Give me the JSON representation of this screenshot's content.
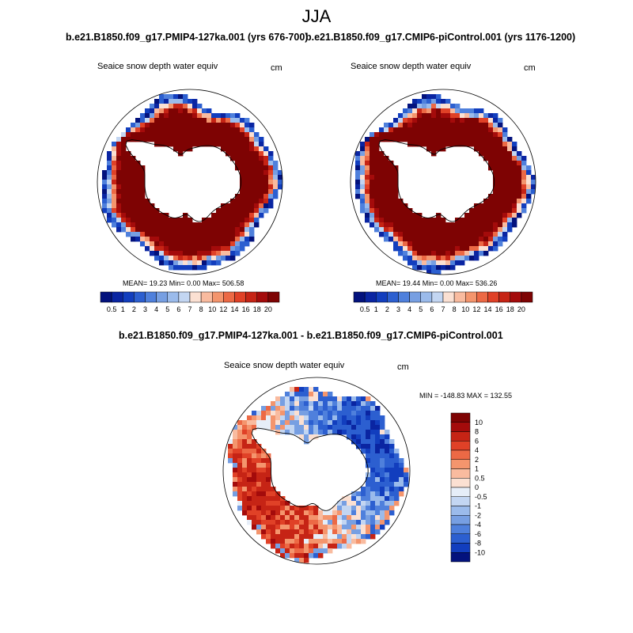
{
  "title": "JJA",
  "colors": {
    "warm": [
      "#fbe0d2",
      "#f9bb9f",
      "#f4956d",
      "#ec6945",
      "#e04127",
      "#c62415",
      "#a40b0b",
      "#7e0303"
    ],
    "cool": [
      "#e6eef8",
      "#c3d6f2",
      "#9bbbeb",
      "#779fe2",
      "#4f80dc",
      "#2c5fd0",
      "#123ebe",
      "#0a25a2",
      "#03127d"
    ],
    "land": "#ffffff",
    "neutral": "#ffffff"
  },
  "panel_left": {
    "subtitle": "b.e21.B1850.f09_g17.PMIP4-127ka.001 (yrs 676-700)",
    "var_label": "Seaice snow depth water equiv",
    "units": "cm",
    "stats": "MEAN=  19.23  Min=   0.00  Max= 506.58",
    "stat_values": {
      "mean": 19.23,
      "min": 0.0,
      "max": 506.58
    }
  },
  "panel_right": {
    "subtitle": "b.e21.B1850.f09_g17.CMIP6-piControl.001 (yrs 1176-1200)",
    "var_label": "Seaice snow depth water equiv",
    "units": "cm",
    "stats": "MEAN=  19.44  Min=   0.00  Max= 536.26",
    "stat_values": {
      "mean": 19.44,
      "min": 0.0,
      "max": 536.26
    }
  },
  "panel_diff": {
    "subtitle": "b.e21.B1850.f09_g17.PMIP4-127ka.001 - b.e21.B1850.f09_g17.CMIP6-piControl.001",
    "var_label": "Seaice snow depth water equiv",
    "units": "cm",
    "stats": "MIN = -148.83 MAX = 132.55",
    "stat_values": {
      "min": -148.83,
      "max": 132.55
    }
  },
  "horizontal_colorbar_labels": [
    "0.5",
    "1",
    "2",
    "3",
    "4",
    "5",
    "6",
    "7",
    "8",
    "10",
    "12",
    "14",
    "16",
    "18",
    "20"
  ],
  "horizontal_colorbar_colors": [
    "#03127d",
    "#0a25a2",
    "#123ebe",
    "#2c5fd0",
    "#4f80dc",
    "#779fe2",
    "#9bbbeb",
    "#c3d6f2",
    "#fbe0d2",
    "#f9bb9f",
    "#f4956d",
    "#ec6945",
    "#e04127",
    "#c62415",
    "#a40b0b",
    "#7e0303"
  ],
  "vertical_colorbar_labels": [
    "10",
    "8",
    "6",
    "4",
    "2",
    "1",
    "0.5",
    "0",
    "-0.5",
    "-1",
    "-2",
    "-4",
    "-6",
    "-8",
    "-10"
  ],
  "vertical_colorbar_colors": [
    "#7e0303",
    "#a40b0b",
    "#c62415",
    "#e04127",
    "#ec6945",
    "#f4956d",
    "#f9bb9f",
    "#fbe0d2",
    "#e6eef8",
    "#c3d6f2",
    "#9bbbeb",
    "#779fe2",
    "#4f80dc",
    "#2c5fd0",
    "#123ebe",
    "#03127d"
  ]
}
